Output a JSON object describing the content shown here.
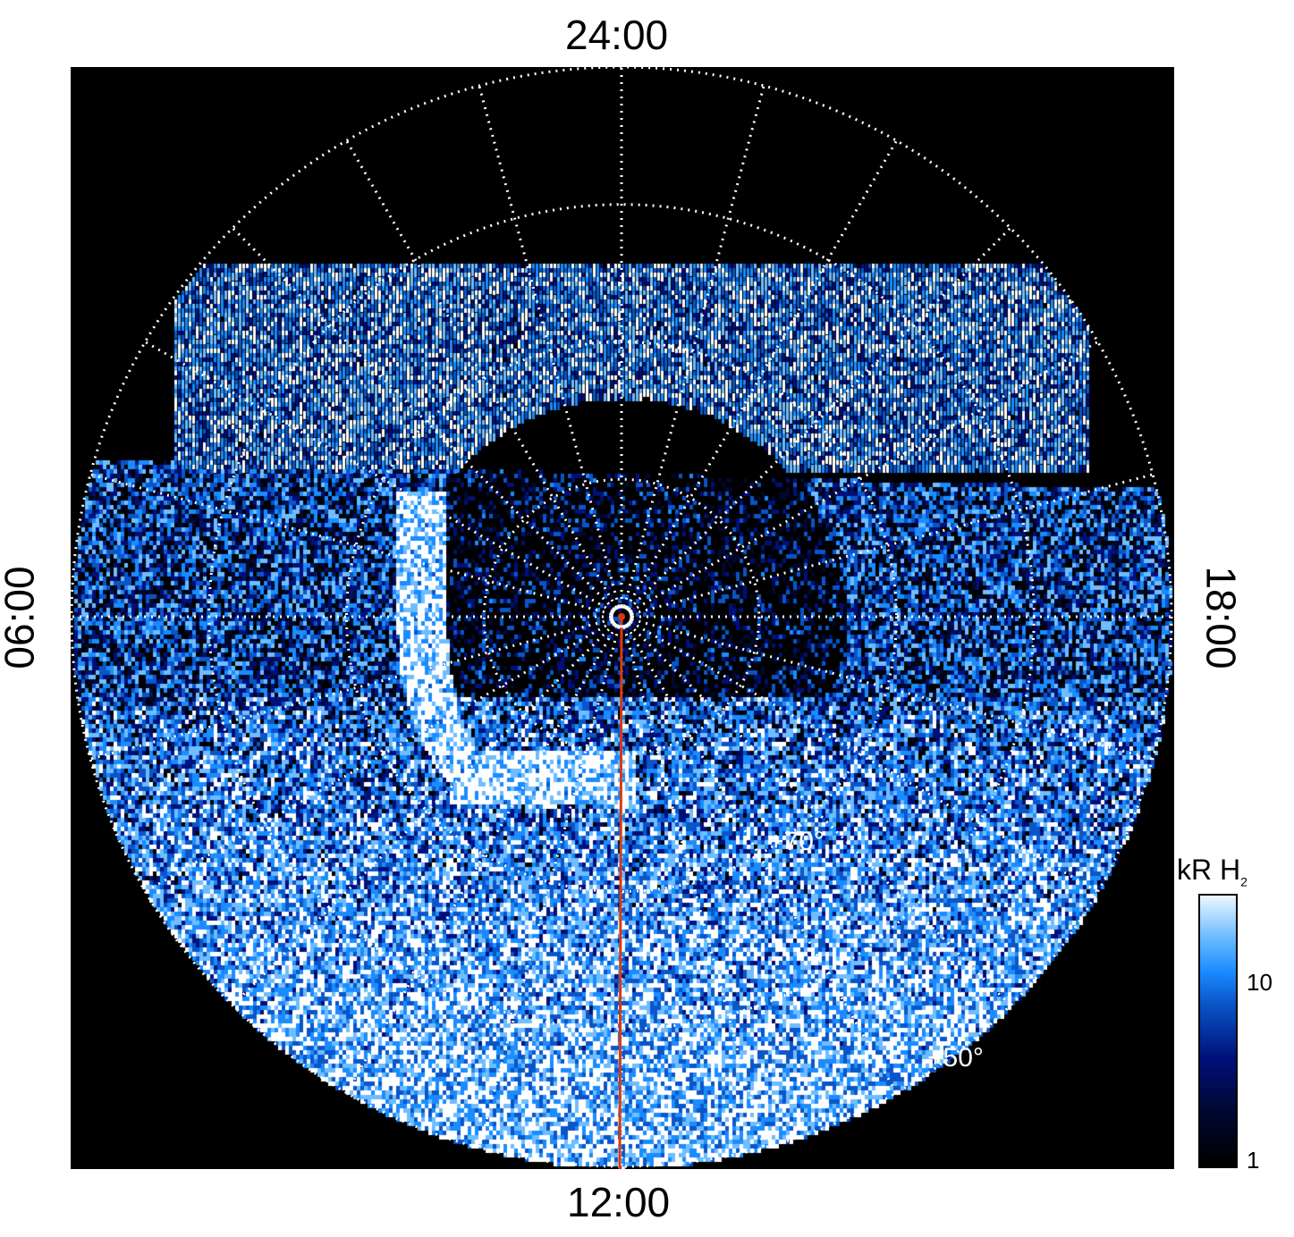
{
  "chart_data": {
    "type": "heatmap",
    "projection": "polar",
    "title": "",
    "local_time_labels": {
      "top": "24:00",
      "bottom": "12:00",
      "left": "06:00",
      "right": "18:00"
    },
    "latitude_labels": [
      "+70°",
      "+50°"
    ],
    "latitude_circles_deg": [
      50,
      60,
      70,
      80
    ],
    "meridians_every_hours": 1,
    "colorbar": {
      "label": "kR H",
      "label_subscript": "2",
      "scale": "log",
      "range": [
        1,
        30
      ],
      "ticks": [
        "1",
        "10"
      ]
    },
    "colormap": [
      "#000000",
      "#000830",
      "#00107a",
      "#0a55c8",
      "#1a8cff",
      "#6fbdff",
      "#ffffff"
    ],
    "reference_line_color": "#d83a10",
    "reference_line_local_time": "12:00"
  }
}
